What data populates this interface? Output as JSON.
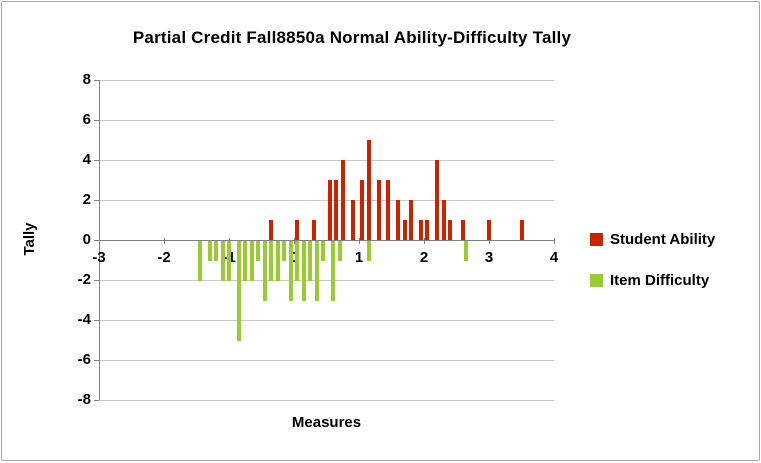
{
  "chart_data": {
    "type": "bar",
    "title": "Partial Credit Fall8850a Normal Ability-Difficulty Tally",
    "xlabel": "Measures",
    "ylabel": "Tally",
    "xlim": [
      -3,
      4
    ],
    "ylim": [
      -8,
      8
    ],
    "xticks": [
      -3,
      -2,
      -1,
      0,
      1,
      2,
      3,
      4
    ],
    "yticks": [
      8,
      6,
      4,
      2,
      0,
      -2,
      -4,
      -6,
      -8
    ],
    "grid": "horizontal",
    "legend_position": "right",
    "axis_color": "#7f7f7f",
    "gridline_color": "#c9c9c9",
    "series": [
      {
        "name": "Student Ability",
        "color": "#cc2200",
        "points": [
          [
            -0.35,
            1
          ],
          [
            0.05,
            1
          ],
          [
            0.3,
            1
          ],
          [
            0.55,
            3
          ],
          [
            0.65,
            3
          ],
          [
            0.75,
            4
          ],
          [
            0.9,
            2
          ],
          [
            1.05,
            3
          ],
          [
            1.15,
            5
          ],
          [
            1.3,
            3
          ],
          [
            1.45,
            3
          ],
          [
            1.6,
            2
          ],
          [
            1.7,
            1
          ],
          [
            1.8,
            2
          ],
          [
            1.95,
            1
          ],
          [
            2.05,
            1
          ],
          [
            2.2,
            4
          ],
          [
            2.3,
            2
          ],
          [
            2.4,
            1
          ],
          [
            2.6,
            1
          ],
          [
            3.0,
            1
          ],
          [
            3.5,
            1
          ]
        ]
      },
      {
        "name": "Item Difficulty",
        "color": "#99cc33",
        "points": [
          [
            -1.45,
            -2
          ],
          [
            -1.3,
            -1
          ],
          [
            -1.2,
            -1
          ],
          [
            -1.1,
            -2
          ],
          [
            -1.0,
            -2
          ],
          [
            -0.85,
            -5
          ],
          [
            -0.75,
            -2
          ],
          [
            -0.65,
            -2
          ],
          [
            -0.55,
            -1
          ],
          [
            -0.45,
            -3
          ],
          [
            -0.35,
            -2
          ],
          [
            -0.25,
            -2
          ],
          [
            -0.15,
            -1
          ],
          [
            -0.05,
            -3
          ],
          [
            0.05,
            -2
          ],
          [
            0.15,
            -3
          ],
          [
            0.25,
            -2
          ],
          [
            0.35,
            -3
          ],
          [
            0.45,
            -1
          ],
          [
            0.6,
            -3
          ],
          [
            0.7,
            -1
          ],
          [
            1.15,
            -1
          ],
          [
            2.65,
            -1
          ]
        ]
      }
    ]
  }
}
